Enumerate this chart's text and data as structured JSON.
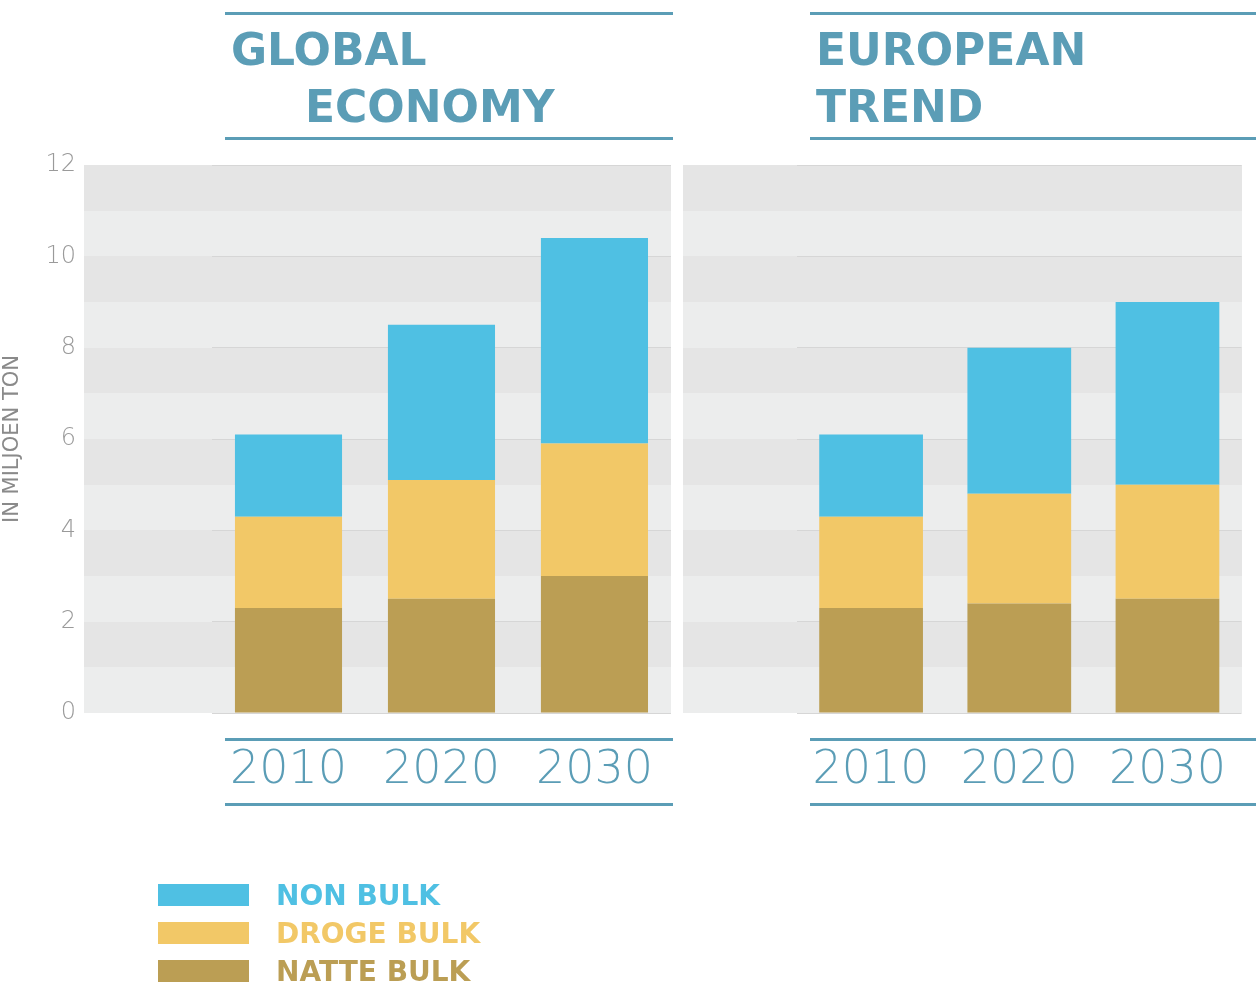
{
  "chart_data": [
    {
      "type": "bar",
      "title": "GLOBAL ECONOMY",
      "ylabel": "IN MILJOEN TON",
      "categories": [
        "2010",
        "2020",
        "2030"
      ],
      "stacked": true,
      "ylim": [
        0,
        12
      ],
      "yticks": [
        0,
        2,
        4,
        6,
        8,
        10,
        12
      ],
      "grid": "y",
      "legend": "bottom",
      "series": [
        {
          "name": "NATTE BULK",
          "color": "#bb9e54",
          "values": [
            2.3,
            2.5,
            3.0
          ]
        },
        {
          "name": "DROGE BULK",
          "color": "#f2c867",
          "values": [
            2.0,
            2.6,
            2.9
          ]
        },
        {
          "name": "NON BULK",
          "color": "#4fc0e3",
          "values": [
            1.8,
            3.4,
            4.5
          ]
        }
      ]
    },
    {
      "type": "bar",
      "title": "EUROPEAN TREND",
      "categories": [
        "2010",
        "2020",
        "2030"
      ],
      "stacked": true,
      "ylim": [
        0,
        12
      ],
      "yticks": [
        0,
        2,
        4,
        6,
        8,
        10,
        12
      ],
      "grid": "y",
      "tick_labels": "x",
      "series": [
        {
          "color": "#bb9e54",
          "values": [
            2.3,
            2.4,
            2.5
          ]
        },
        {
          "color": "#f2c867",
          "values": [
            2.0,
            2.4,
            2.5
          ]
        },
        {
          "color": "#4fc0e3",
          "values": [
            1.8,
            3.2,
            4.0
          ]
        }
      ]
    }
  ]
}
